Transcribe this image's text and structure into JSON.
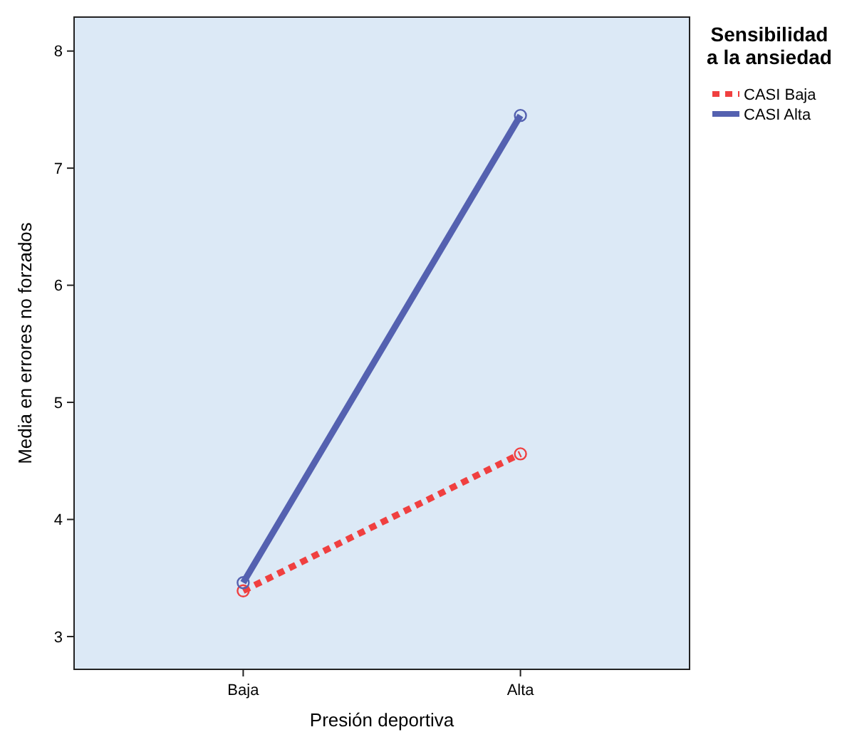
{
  "chart_data": {
    "type": "line",
    "xlabel": "Presión deportiva",
    "ylabel": "Media en errores no forzados",
    "legend_title": "Sensibilidad a la ansiedad",
    "categories": [
      "Baja",
      "Alta"
    ],
    "series": [
      {
        "name": "CASI Baja",
        "color": "#f04040",
        "values": [
          3.39,
          4.56
        ],
        "line_style": "dotted"
      },
      {
        "name": "CASI Alta",
        "color": "#5461b0",
        "values": [
          3.46,
          7.45
        ],
        "line_style": "solid"
      }
    ],
    "ylim": [
      2.72,
      8.29
    ],
    "yticks": [
      3,
      4,
      5,
      6,
      7,
      8
    ],
    "grid": false,
    "legend": "top right",
    "marker": "circle"
  }
}
